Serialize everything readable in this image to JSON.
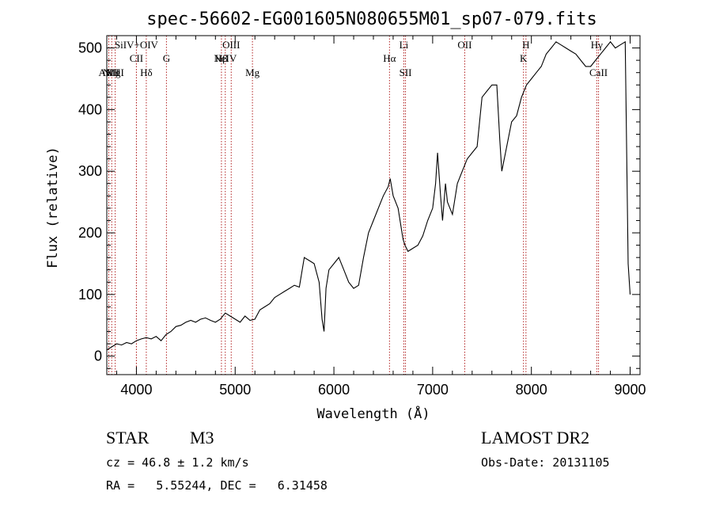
{
  "chart_data": {
    "type": "line",
    "title": "spec-56602-EG001605N080655M01_sp07-079.fits",
    "xlabel": "Wavelength (Å)",
    "ylabel": "Flux (relative)",
    "xlim": [
      3700,
      9100
    ],
    "ylim": [
      -30,
      520
    ],
    "xticks": [
      4000,
      5000,
      6000,
      7000,
      8000,
      9000
    ],
    "yticks": [
      0,
      100,
      200,
      300,
      400,
      500
    ],
    "grid": false,
    "series": [
      {
        "x": [
          3700,
          3750,
          3800,
          3850,
          3900,
          3950,
          4000,
          4050,
          4100,
          4150,
          4200,
          4250,
          4300,
          4350,
          4400,
          4450,
          4500,
          4550,
          4600,
          4650,
          4700,
          4750,
          4800,
          4850,
          4900,
          4950,
          5000,
          5050,
          5100,
          5150,
          5200,
          5250,
          5300,
          5350,
          5400,
          5450,
          5500,
          5550,
          5600,
          5650,
          5700,
          5750,
          5800,
          5850,
          5880,
          5900,
          5920,
          5950,
          6000,
          6050,
          6100,
          6150,
          6200,
          6250,
          6300,
          6350,
          6400,
          6450,
          6500,
          6550,
          6570,
          6600,
          6650,
          6700,
          6720,
          6750,
          6800,
          6850,
          6900,
          6950,
          7000,
          7030,
          7050,
          7080,
          7100,
          7130,
          7150,
          7200,
          7250,
          7300,
          7350,
          7400,
          7450,
          7500,
          7550,
          7600,
          7650,
          7680,
          7700,
          7750,
          7800,
          7850,
          7900,
          7950,
          8000,
          8050,
          8100,
          8150,
          8200,
          8250,
          8300,
          8350,
          8400,
          8450,
          8500,
          8550,
          8600,
          8650,
          8700,
          8750,
          8800,
          8850,
          8900,
          8950,
          8980,
          9000
        ],
        "y": [
          10,
          15,
          20,
          18,
          22,
          20,
          25,
          28,
          30,
          28,
          32,
          25,
          35,
          40,
          48,
          50,
          55,
          58,
          55,
          60,
          62,
          58,
          55,
          60,
          70,
          65,
          60,
          55,
          65,
          58,
          60,
          75,
          80,
          85,
          95,
          100,
          105,
          110,
          115,
          112,
          160,
          155,
          150,
          120,
          60,
          40,
          110,
          140,
          150,
          160,
          140,
          120,
          110,
          115,
          160,
          200,
          220,
          240,
          260,
          275,
          288,
          260,
          240,
          190,
          180,
          170,
          175,
          180,
          195,
          220,
          240,
          280,
          330,
          260,
          220,
          280,
          250,
          230,
          280,
          300,
          320,
          330,
          340,
          420,
          430,
          440,
          440,
          350,
          300,
          340,
          380,
          390,
          420,
          440,
          450,
          460,
          470,
          490,
          500,
          510,
          505,
          500,
          495,
          490,
          480,
          470,
          470,
          480,
          490,
          500,
          510,
          500,
          505,
          510,
          150,
          100
        ]
      }
    ],
    "lines": [
      {
        "name": "AlIII",
        "x": 3720,
        "row": 3
      },
      {
        "name": "NIII",
        "x": 3750,
        "row": 3
      },
      {
        "name": "MgI",
        "x": 3785,
        "row": 3
      },
      {
        "name": "SiIV+OIV",
        "x": 4000,
        "row": 1
      },
      {
        "name": "CII",
        "x": 4000,
        "row": 2
      },
      {
        "name": "Hδ",
        "x": 4100,
        "row": 3
      },
      {
        "name": "G",
        "x": 4304,
        "row": 2
      },
      {
        "name": "OIII",
        "x": 4960,
        "row": 1
      },
      {
        "name": "Hβ",
        "x": 4861,
        "row": 2
      },
      {
        "name": "NeIV",
        "x": 4900,
        "row": 2
      },
      {
        "name": "Mg",
        "x": 5175,
        "row": 3
      },
      {
        "name": "Hα",
        "x": 6563,
        "row": 2
      },
      {
        "name": "Li",
        "x": 6708,
        "row": 1
      },
      {
        "name": "SII",
        "x": 6725,
        "row": 3
      },
      {
        "name": "OII",
        "x": 7325,
        "row": 1
      },
      {
        "name": "K",
        "x": 7920,
        "row": 2
      },
      {
        "name": "H",
        "x": 7945,
        "row": 1
      },
      {
        "name": "Hγ",
        "x": 8662,
        "row": 1
      },
      {
        "name": "CaII",
        "x": 8680,
        "row": 3
      }
    ]
  },
  "info": {
    "object_class": "STAR",
    "subclass": "M3",
    "survey": "LAMOST DR2",
    "redshift": "cz = 46.8 ± 1.2 km/s",
    "obs_date": "Obs-Date: 20131105",
    "coords": "RA =   5.55244, DEC =   6.31458"
  },
  "colors": {
    "line_marker": "#b22222",
    "spectrum": "#000000"
  }
}
